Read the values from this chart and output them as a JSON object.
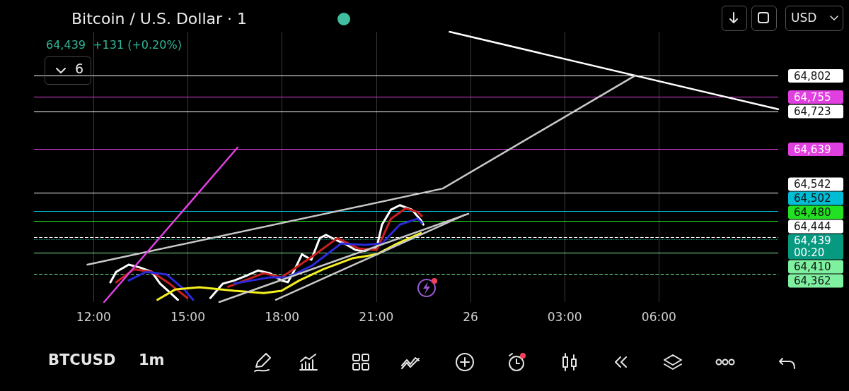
{
  "chart_data": {
    "type": "line",
    "title": "Bitcoin / U.S. Dollar · 1",
    "subtitle": "64,439  +131 (+0.20%)",
    "annotations": [
      "6",
      "USD",
      "BTCUSD",
      "1m"
    ],
    "xlim": [
      "--08-25T10:06",
      "--08-26T09:48"
    ],
    "xticks": [
      {
        "value": "--08-25T12:00",
        "label": "12:00"
      },
      {
        "value": "--08-25T15:00",
        "label": "15:00"
      },
      {
        "value": "--08-25T18:00",
        "label": "18:00"
      },
      {
        "value": "--08-25T21:00",
        "label": "21:00"
      },
      {
        "value": "--08-26T00:00",
        "label": "26"
      },
      {
        "value": "--08-26T03:00",
        "label": "03:00"
      },
      {
        "value": "--08-26T06:00",
        "label": "06:00"
      }
    ],
    "ylim": [
      64300,
      64900
    ],
    "tick_labels": "x",
    "grid": "x",
    "marker": "none",
    "series": [
      {
        "color": "#ffffff",
        "x": [
          "--08-25T12:32",
          "--08-25T12:43",
          "--08-25T13:07",
          "--08-25T13:28",
          "--08-25T13:51",
          "--08-25T14:07",
          "--08-25T14:25",
          "--08-25T14:41",
          "--08-25T15:12",
          "--08-25T15:43",
          "--08-25T16:07",
          "--08-25T16:29",
          "--08-25T16:51",
          "--08-25T17:14",
          "--08-25T17:37",
          "--08-25T17:59",
          "--08-25T18:11",
          "--08-25T18:22",
          "--08-25T18:38",
          "--08-25T18:56",
          "--08-25T19:12",
          "--08-25T19:24",
          "--08-25T19:41",
          "--08-25T20:04",
          "--08-25T20:20",
          "--08-25T20:37",
          "--08-25T21:01",
          "--08-25T21:11",
          "--08-25T21:28",
          "--08-25T21:45",
          "--08-25T22:08",
          "--08-25T22:25",
          "--08-25T22:30"
        ],
        "values": [
          64344,
          64367,
          64383,
          64377,
          64367,
          64341,
          64322,
          64305,
          null,
          64309,
          64341,
          64348,
          64358,
          64370,
          64364,
          64348,
          64344,
          64367,
          64406,
          64394,
          64442,
          64449,
          64439,
          64427,
          64416,
          64413,
          64422,
          64472,
          64505,
          64515,
          64505,
          64482,
          64472
        ]
      },
      {
        "color": "#cc1f1f",
        "x": [
          "--08-25T12:43",
          "--08-25T13:17",
          "--08-25T13:51",
          "--08-25T14:25",
          "--08-25T14:59",
          "--08-25T15:30",
          "--08-25T16:17",
          "--08-25T17:25",
          "--08-25T17:59",
          "--08-25T18:56",
          "--08-25T19:46",
          "--08-25T20:26",
          "--08-25T21:01",
          "--08-25T21:28",
          "--08-25T21:56",
          "--08-25T22:19",
          "--08-25T22:27"
        ],
        "values": [
          64344,
          64373,
          64367,
          64341,
          64309,
          null,
          64334,
          64364,
          64355,
          64400,
          64442,
          64419,
          64416,
          64485,
          64508,
          64500,
          64491
        ]
      },
      {
        "color": "#2a2ad8",
        "x": [
          "--08-25T13:07",
          "--08-25T13:40",
          "--08-25T14:20",
          "--08-25T14:53",
          "--08-25T15:10",
          "--08-25T15:48",
          "--08-25T16:29",
          "--08-25T17:37",
          "--08-25T18:11",
          "--08-25T18:56",
          "--08-25T19:53",
          "--08-25T20:37",
          "--08-25T21:11",
          "--08-25T21:45",
          "--08-25T22:19",
          "--08-25T22:27"
        ],
        "values": [
          64348,
          64367,
          64361,
          64328,
          64305,
          null,
          64341,
          64355,
          64355,
          64380,
          64430,
          64427,
          64430,
          64472,
          64485,
          64475
        ]
      },
      {
        "color": "#f5f020",
        "x": [
          "--08-25T14:02",
          "--08-25T14:36",
          "--08-25T15:22",
          "--08-25T16:29",
          "--08-25T17:25",
          "--08-25T17:59",
          "--08-25T18:33",
          "--08-25T19:19",
          "--08-25T20:14",
          "--08-25T21:01",
          "--08-25T21:40",
          "--08-25T22:25"
        ],
        "values": [
          64305,
          64328,
          64333,
          64325,
          64320,
          64325,
          64348,
          64373,
          64397,
          64406,
          64430,
          64453
        ]
      },
      {
        "color": "#ffffff",
        "x": [
          "--08-25T23:20",
          "--08-26T09:48"
        ],
        "values": [
          64900,
          64728
        ]
      },
      {
        "color": "#c8c8c8",
        "x": [
          "--08-25T11:48",
          "--08-25T23:07",
          "--08-26T05:15"
        ],
        "values": [
          64383,
          64552,
          64803
        ]
      },
      {
        "color": "#e040e0",
        "x": [
          "--08-25T12:20",
          "--08-25T16:35"
        ],
        "values": [
          64300,
          64643
        ]
      },
      {
        "color": "#c8c8c8",
        "x": [
          "--08-25T16:00",
          "--08-25T23:56"
        ],
        "values": [
          64300,
          64496
        ]
      },
      {
        "color": "#c8c8c8",
        "x": [
          "--08-25T17:48",
          "--08-25T23:50"
        ],
        "values": [
          64305,
          64494
        ]
      }
    ],
    "ref_lines": [
      {
        "axis": "y",
        "value": 64802,
        "label": "64,802",
        "color": "#ffffff"
      },
      {
        "axis": "y",
        "value": 64755,
        "label": "64,755",
        "color": "#e040e0"
      },
      {
        "axis": "y",
        "value": 64723,
        "label": "64,723",
        "color": "#ffffff"
      },
      {
        "axis": "y",
        "value": 64639,
        "label": "64,639",
        "color": "#e040e0"
      },
      {
        "axis": "y",
        "value": 64542,
        "label": "64,542",
        "color": "#ffffff"
      },
      {
        "axis": "y",
        "value": 64502,
        "label": "64,502",
        "color": "#00bcd4"
      },
      {
        "axis": "y",
        "value": 64480,
        "label": "64,480",
        "color": "#22e022"
      },
      {
        "axis": "y",
        "value": 64444,
        "label": "64,444",
        "color": "#ffffff",
        "line_style": "dashed"
      },
      {
        "axis": "y",
        "value": 64439,
        "label": "64,439\n00:20",
        "color": "#089981",
        "line_style": "dotted"
      },
      {
        "axis": "y",
        "value": 64410,
        "label": "64,410",
        "color": "#7ef0a0"
      },
      {
        "axis": "y",
        "value": 64362,
        "label": "64,362",
        "color": "#7ef0a0",
        "line_style": "dashed"
      }
    ]
  }
}
